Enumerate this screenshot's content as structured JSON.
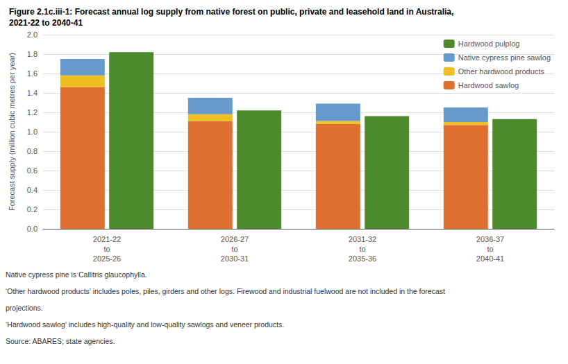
{
  "chart_data": {
    "type": "bar",
    "title": "Figure 2.1c.iii-1: Forecast annual log supply from native forest on public, private and leasehold land in Australia,\n2021-22 to 2040-41",
    "y_label": "Forecast supply (million cubic metres per year)",
    "categories": [
      "2021-22\nto\n2025-26",
      "2026-27\nto\n2030-31",
      "2031-32\nto\n2035-36",
      "2036-37\nto\n2040-41"
    ],
    "series": [
      {
        "name": "Hardwood sawlog",
        "color": "#E07030",
        "values": [
          1.46,
          1.11,
          1.08,
          1.07
        ],
        "stacked": true
      },
      {
        "name": "Other hardwood products",
        "color": "#F0C020",
        "values": [
          0.12,
          0.07,
          0.03,
          0.03
        ],
        "stacked": true
      },
      {
        "name": "Native cypress pine sawlog",
        "color": "#6699CC",
        "values": [
          0.17,
          0.17,
          0.18,
          0.15
        ],
        "stacked": true
      },
      {
        "name": "Hardwood pulplog",
        "color": "#4D8A2E",
        "values": [
          1.82,
          1.22,
          1.16,
          1.13
        ],
        "stacked": false
      }
    ],
    "ylim": [
      0,
      2
    ],
    "yticks": [
      {
        "value": 0,
        "label": "0.0"
      },
      0.2,
      0.4,
      0.6,
      0.8,
      {
        "value": 1,
        "label": "1.0"
      },
      1.2,
      1.4,
      1.6,
      1.8,
      {
        "value": 2,
        "label": "2.0"
      }
    ],
    "grid": true,
    "legend": "upper right",
    "annotations": [
      "Native cypress pine is Callitris glaucophylla.",
      "‘Other hardwood products’ includes poles, piles, girders and other logs. Firewood and industrial fuelwood are not included in the forecast",
      "projections.",
      "‘Hardwood sawlog’ includes high-quality and low-quality sawlogs and veneer products.",
      "Source: ABARES; state agencies."
    ]
  }
}
